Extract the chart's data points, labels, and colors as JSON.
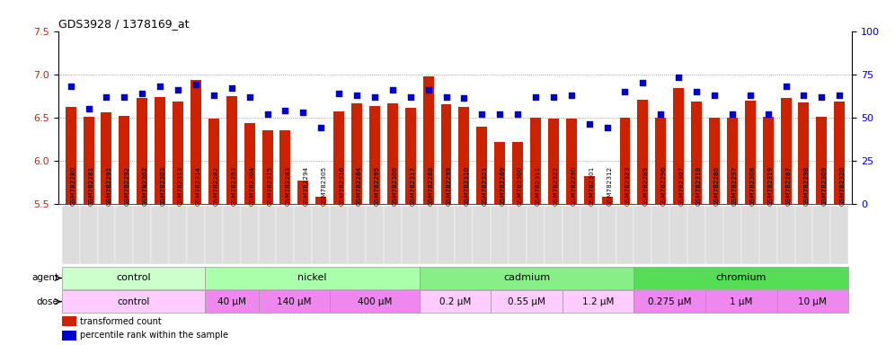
{
  "title": "GDS3928 / 1378169_at",
  "ylim_left": [
    5.5,
    7.5
  ],
  "ylim_right": [
    0,
    100
  ],
  "yticks_left": [
    5.5,
    6.0,
    6.5,
    7.0,
    7.5
  ],
  "yticks_right": [
    0,
    25,
    50,
    75,
    100
  ],
  "bar_color": "#cc2200",
  "dot_color": "#0000cc",
  "samples": [
    "GSM782280",
    "GSM782281",
    "GSM782291",
    "GSM782292",
    "GSM782302",
    "GSM782303",
    "GSM782313",
    "GSM782314",
    "GSM782282",
    "GSM782293",
    "GSM782304",
    "GSM782315",
    "GSM782283",
    "GSM782294",
    "GSM782305",
    "GSM782316",
    "GSM782284",
    "GSM782295",
    "GSM782306",
    "GSM782317",
    "GSM782288",
    "GSM782299",
    "GSM782310",
    "GSM782321",
    "GSM782289",
    "GSM782300",
    "GSM782311",
    "GSM782322",
    "GSM782290",
    "GSM782301",
    "GSM782312",
    "GSM782323",
    "GSM782285",
    "GSM782296",
    "GSM782307",
    "GSM782318",
    "GSM782286",
    "GSM782297",
    "GSM782308",
    "GSM782319",
    "GSM782287",
    "GSM782298",
    "GSM782309",
    "GSM782320"
  ],
  "bar_values": [
    6.62,
    6.51,
    6.56,
    6.52,
    6.72,
    6.73,
    6.68,
    6.93,
    6.48,
    6.75,
    6.43,
    6.35,
    6.35,
    5.77,
    5.58,
    6.57,
    6.66,
    6.63,
    6.66,
    6.61,
    6.97,
    6.65,
    6.62,
    6.39,
    6.21,
    6.21,
    6.5,
    6.48,
    6.48,
    5.82,
    5.58,
    6.5,
    6.7,
    6.5,
    6.84,
    6.68,
    6.5,
    6.5,
    6.69,
    6.51,
    6.72,
    6.67,
    6.51,
    6.68
  ],
  "dot_values_pct": [
    68,
    55,
    62,
    62,
    64,
    68,
    66,
    69,
    63,
    67,
    62,
    52,
    54,
    53,
    44,
    64,
    63,
    62,
    66,
    62,
    66,
    62,
    61,
    52,
    52,
    52,
    62,
    62,
    63,
    46,
    44,
    65,
    70,
    52,
    73,
    65,
    63,
    52,
    63,
    52,
    68,
    63,
    62,
    63
  ],
  "agent_groups": [
    {
      "label": "control",
      "start": 0,
      "end": 8,
      "color": "#ccffcc"
    },
    {
      "label": "nickel",
      "start": 8,
      "end": 20,
      "color": "#aaffaa"
    },
    {
      "label": "cadmium",
      "start": 20,
      "end": 32,
      "color": "#88ee88"
    },
    {
      "label": "chromium",
      "start": 32,
      "end": 44,
      "color": "#55dd55"
    }
  ],
  "dose_groups": [
    {
      "label": "control",
      "start": 0,
      "end": 8,
      "color": "#ffccff"
    },
    {
      "label": "40 μM",
      "start": 8,
      "end": 11,
      "color": "#ee88ee"
    },
    {
      "label": "140 μM",
      "start": 11,
      "end": 15,
      "color": "#ee88ee"
    },
    {
      "label": "400 μM",
      "start": 15,
      "end": 20,
      "color": "#ee88ee"
    },
    {
      "label": "0.2 μM",
      "start": 20,
      "end": 24,
      "color": "#ffccff"
    },
    {
      "label": "0.55 μM",
      "start": 24,
      "end": 28,
      "color": "#ffccff"
    },
    {
      "label": "1.2 μM",
      "start": 28,
      "end": 32,
      "color": "#ffccff"
    },
    {
      "label": "0.275 μM",
      "start": 32,
      "end": 36,
      "color": "#ee88ee"
    },
    {
      "label": "1 μM",
      "start": 36,
      "end": 40,
      "color": "#ee88ee"
    },
    {
      "label": "10 μM",
      "start": 40,
      "end": 44,
      "color": "#ee88ee"
    }
  ],
  "background_color": "#ffffff",
  "grid_color": "#888888",
  "xlabel_bg": "#dddddd"
}
